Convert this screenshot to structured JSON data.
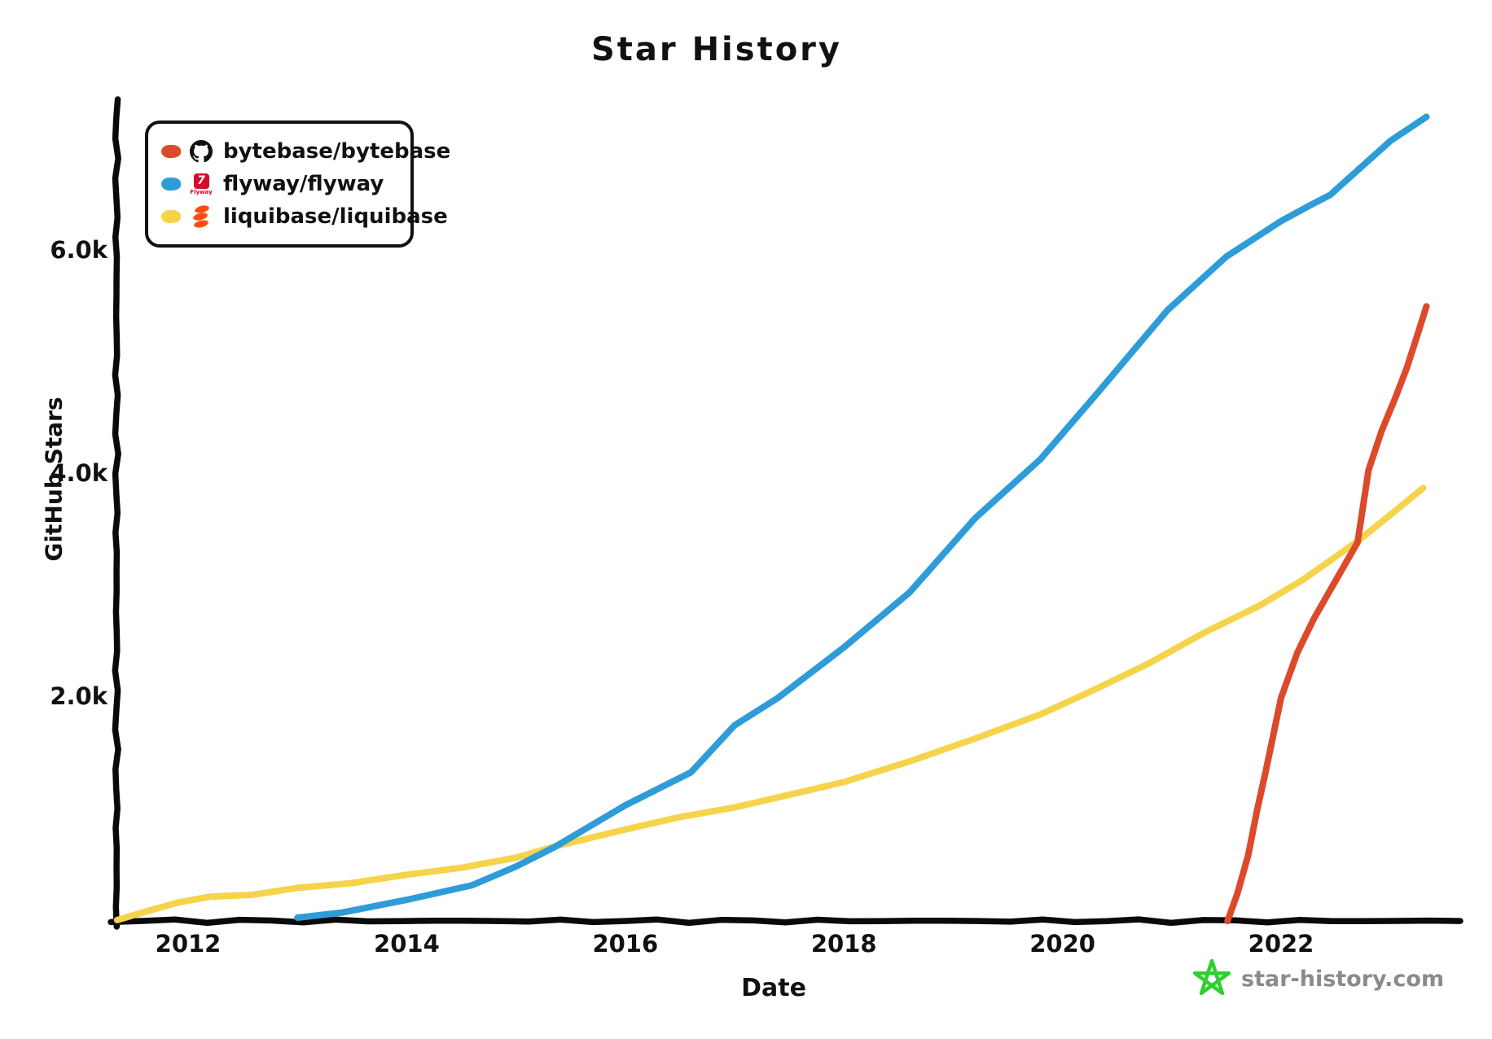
{
  "page": {
    "title": "Star History"
  },
  "legend": {
    "items": [
      {
        "label": "bytebase/bytebase",
        "color": "#dc4a2b",
        "icon": "github-icon"
      },
      {
        "label": "flyway/flyway",
        "color": "#2e9cd8",
        "icon": "flyway-icon",
        "icon_text": "7",
        "icon_word": "Flyway"
      },
      {
        "label": "liquibase/liquibase",
        "color": "#f5d44c",
        "icon": "liquibase-icon"
      }
    ]
  },
  "watermark": {
    "text": "star-history.com",
    "star_color": "#2ed02e",
    "text_color": "#8b8b8b"
  },
  "chart_data": {
    "type": "line",
    "title": "Star History",
    "xlabel": "Date",
    "ylabel": "GitHub Stars",
    "grid": false,
    "legend_position": "top-left",
    "xlim": [
      2011.3,
      2023.6
    ],
    "ylim": [
      0,
      7350
    ],
    "x_ticks": [
      2012,
      2014,
      2016,
      2018,
      2020,
      2022
    ],
    "y_ticks": [
      {
        "value": 2000,
        "label": "2.0k"
      },
      {
        "value": 4000,
        "label": "4.0k"
      },
      {
        "value": 6000,
        "label": "6.0k"
      }
    ],
    "series": [
      {
        "name": "liquibase/liquibase",
        "color": "#f5d44c",
        "points": [
          [
            2011.35,
            10
          ],
          [
            2011.6,
            90
          ],
          [
            2011.9,
            160
          ],
          [
            2012.2,
            210
          ],
          [
            2012.6,
            245
          ],
          [
            2013.0,
            290
          ],
          [
            2013.5,
            345
          ],
          [
            2014.0,
            410
          ],
          [
            2014.5,
            480
          ],
          [
            2015.0,
            565
          ],
          [
            2015.35,
            660
          ],
          [
            2016.0,
            820
          ],
          [
            2016.5,
            930
          ],
          [
            2017.0,
            1020
          ],
          [
            2017.4,
            1100
          ],
          [
            2018.0,
            1250
          ],
          [
            2018.6,
            1430
          ],
          [
            2019.2,
            1630
          ],
          [
            2019.8,
            1860
          ],
          [
            2020.3,
            2070
          ],
          [
            2020.8,
            2320
          ],
          [
            2021.3,
            2580
          ],
          [
            2021.8,
            2830
          ],
          [
            2022.2,
            3060
          ],
          [
            2022.7,
            3400
          ],
          [
            2023.0,
            3650
          ],
          [
            2023.3,
            3880
          ]
        ]
      },
      {
        "name": "flyway/flyway",
        "color": "#2e9cd8",
        "points": [
          [
            2013.0,
            20
          ],
          [
            2013.4,
            80
          ],
          [
            2014.0,
            180
          ],
          [
            2014.6,
            330
          ],
          [
            2015.0,
            480
          ],
          [
            2015.35,
            660
          ],
          [
            2016.0,
            1030
          ],
          [
            2016.6,
            1340
          ],
          [
            2017.0,
            1750
          ],
          [
            2017.4,
            2000
          ],
          [
            2018.0,
            2450
          ],
          [
            2018.6,
            2950
          ],
          [
            2019.2,
            3600
          ],
          [
            2019.8,
            4150
          ],
          [
            2020.3,
            4700
          ],
          [
            2020.96,
            5480
          ],
          [
            2021.5,
            5950
          ],
          [
            2022.0,
            6280
          ],
          [
            2022.25,
            6400
          ],
          [
            2022.45,
            6500
          ],
          [
            2023.0,
            7000
          ],
          [
            2023.33,
            7200
          ]
        ]
      },
      {
        "name": "bytebase/bytebase",
        "color": "#dc4a2b",
        "points": [
          [
            2021.51,
            0
          ],
          [
            2021.6,
            250
          ],
          [
            2021.7,
            600
          ],
          [
            2021.78,
            1000
          ],
          [
            2021.86,
            1350
          ],
          [
            2022.0,
            2000
          ],
          [
            2022.15,
            2400
          ],
          [
            2022.3,
            2700
          ],
          [
            2022.5,
            3050
          ],
          [
            2022.7,
            3400
          ],
          [
            2022.8,
            4050
          ],
          [
            2022.92,
            4400
          ],
          [
            2023.05,
            4700
          ],
          [
            2023.15,
            4950
          ],
          [
            2023.25,
            5250
          ],
          [
            2023.33,
            5500
          ]
        ]
      }
    ]
  }
}
